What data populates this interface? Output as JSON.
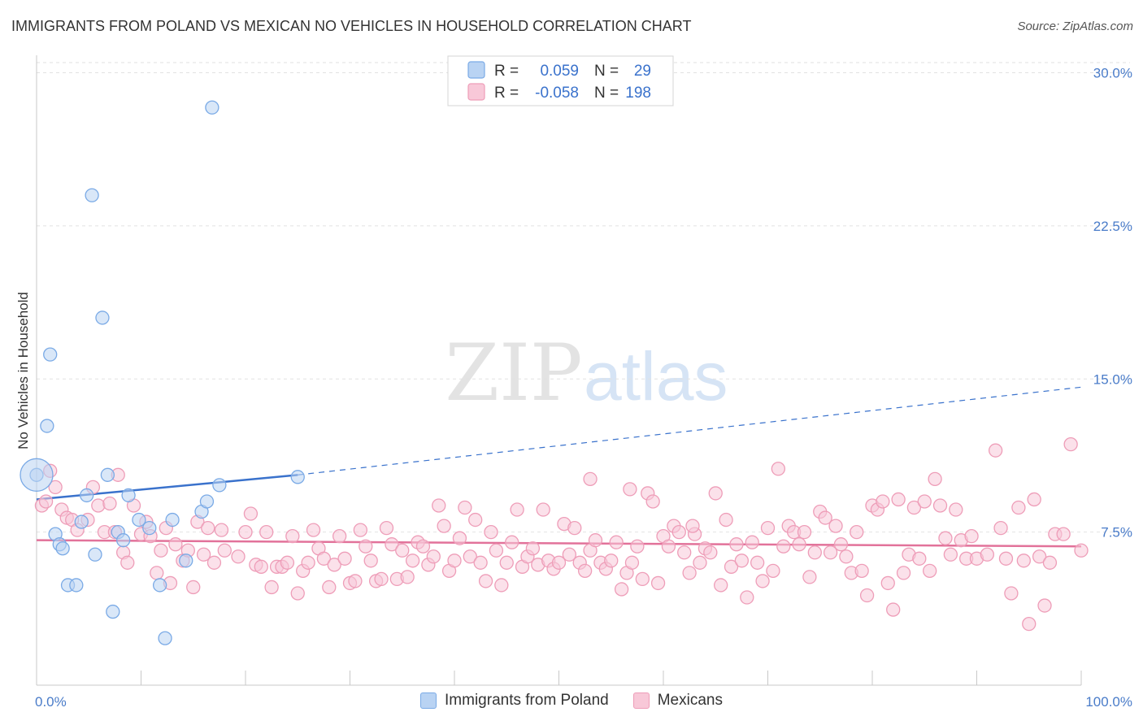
{
  "title": "IMMIGRANTS FROM POLAND VS MEXICAN NO VEHICLES IN HOUSEHOLD CORRELATION CHART",
  "source": "Source: ZipAtlas.com",
  "watermark": {
    "zip": "ZIP",
    "atlas": "atlas"
  },
  "chart_data": {
    "type": "scatter",
    "xlabel": "",
    "ylabel": "No Vehicles in Household",
    "xlim": [
      0,
      100
    ],
    "ylim": [
      0,
      30.5
    ],
    "x_tick_labels": [
      "0.0%",
      "100.0%"
    ],
    "y_ticks": [
      7.5,
      15.0,
      22.5,
      30.0
    ],
    "y_tick_labels": [
      "7.5%",
      "15.0%",
      "22.5%",
      "30.0%"
    ],
    "legend": {
      "rows": [
        {
          "r_label": "R =",
          "r_value": "0.059",
          "n_label": "N =",
          "n_value": "29"
        },
        {
          "r_label": "R =",
          "r_value": "-0.058",
          "n_label": "N =",
          "n_value": "198"
        }
      ]
    },
    "series": [
      {
        "name": "Immigrants from Poland",
        "color": "#7aaae6",
        "fill": "#b9d3f3",
        "trend": {
          "x0": 0,
          "y0": 9.1,
          "x1": 25,
          "y1": 10.3,
          "dash_to_x": 100,
          "dash_to_y": 14.6,
          "color": "#3a72cc"
        },
        "points": [
          [
            0,
            10.3
          ],
          [
            1,
            12.7
          ],
          [
            1.3,
            16.2
          ],
          [
            1.8,
            7.4
          ],
          [
            2.2,
            6.9
          ],
          [
            2.5,
            6.7
          ],
          [
            3,
            4.9
          ],
          [
            3.8,
            4.9
          ],
          [
            4.3,
            8.0
          ],
          [
            4.8,
            9.3
          ],
          [
            5.3,
            24.0
          ],
          [
            5.6,
            6.4
          ],
          [
            6.3,
            18.0
          ],
          [
            6.8,
            10.3
          ],
          [
            7.3,
            3.6
          ],
          [
            7.8,
            7.5
          ],
          [
            8.3,
            7.1
          ],
          [
            8.8,
            9.3
          ],
          [
            9.8,
            8.1
          ],
          [
            10.8,
            7.7
          ],
          [
            11.8,
            4.9
          ],
          [
            12.3,
            2.3
          ],
          [
            13.0,
            8.1
          ],
          [
            14.3,
            6.1
          ],
          [
            15.8,
            8.5
          ],
          [
            16.3,
            9.0
          ],
          [
            16.8,
            28.3
          ],
          [
            17.5,
            9.8
          ],
          [
            25,
            10.2
          ]
        ]
      },
      {
        "name": "Mexicans",
        "color": "#ee9db8",
        "fill": "#f8c8d8",
        "trend": {
          "x0": 0,
          "y0": 7.1,
          "x1": 100,
          "y1": 6.8,
          "color": "#e2729a"
        },
        "points": [
          [
            0.5,
            8.8
          ],
          [
            0.9,
            9.0
          ],
          [
            1.3,
            10.5
          ],
          [
            1.8,
            9.7
          ],
          [
            2.4,
            8.6
          ],
          [
            2.9,
            8.2
          ],
          [
            3.4,
            8.1
          ],
          [
            3.9,
            7.6
          ],
          [
            4.9,
            8.1
          ],
          [
            5.4,
            9.7
          ],
          [
            5.9,
            8.8
          ],
          [
            6.5,
            7.5
          ],
          [
            7.0,
            8.9
          ],
          [
            7.5,
            7.5
          ],
          [
            7.8,
            10.3
          ],
          [
            8.3,
            6.5
          ],
          [
            8.7,
            6.0
          ],
          [
            9.3,
            8.8
          ],
          [
            10.0,
            7.4
          ],
          [
            10.5,
            8.0
          ],
          [
            10.9,
            7.3
          ],
          [
            11.5,
            5.5
          ],
          [
            11.9,
            6.6
          ],
          [
            12.4,
            7.7
          ],
          [
            12.8,
            5.0
          ],
          [
            13.3,
            6.9
          ],
          [
            14.0,
            6.1
          ],
          [
            14.5,
            6.6
          ],
          [
            15.0,
            4.8
          ],
          [
            15.4,
            8.0
          ],
          [
            16.0,
            6.4
          ],
          [
            16.4,
            7.7
          ],
          [
            17.0,
            6.0
          ],
          [
            17.7,
            7.6
          ],
          [
            18.0,
            6.6
          ],
          [
            19.3,
            6.3
          ],
          [
            20.0,
            7.5
          ],
          [
            20.5,
            8.4
          ],
          [
            21.0,
            5.9
          ],
          [
            21.5,
            5.8
          ],
          [
            22.0,
            7.5
          ],
          [
            22.5,
            4.8
          ],
          [
            23.0,
            5.8
          ],
          [
            23.5,
            5.8
          ],
          [
            24.0,
            6.0
          ],
          [
            24.5,
            7.3
          ],
          [
            25.0,
            4.5
          ],
          [
            25.5,
            5.6
          ],
          [
            26.0,
            6.0
          ],
          [
            26.5,
            7.6
          ],
          [
            27.0,
            6.7
          ],
          [
            27.5,
            6.2
          ],
          [
            28.0,
            4.8
          ],
          [
            28.5,
            5.9
          ],
          [
            29.0,
            7.3
          ],
          [
            29.5,
            6.2
          ],
          [
            30.0,
            5.0
          ],
          [
            30.5,
            5.1
          ],
          [
            31.0,
            7.6
          ],
          [
            31.5,
            6.8
          ],
          [
            32.0,
            6.1
          ],
          [
            32.5,
            5.1
          ],
          [
            33.0,
            5.2
          ],
          [
            33.5,
            7.7
          ],
          [
            34.0,
            6.9
          ],
          [
            34.5,
            5.2
          ],
          [
            35.0,
            6.6
          ],
          [
            35.5,
            5.3
          ],
          [
            36.0,
            6.1
          ],
          [
            36.5,
            7.0
          ],
          [
            37.0,
            6.8
          ],
          [
            37.5,
            5.9
          ],
          [
            38.0,
            6.3
          ],
          [
            38.5,
            8.8
          ],
          [
            39.0,
            7.8
          ],
          [
            39.5,
            5.6
          ],
          [
            40.0,
            6.1
          ],
          [
            40.5,
            7.2
          ],
          [
            41.0,
            8.7
          ],
          [
            41.5,
            6.3
          ],
          [
            42.0,
            8.1
          ],
          [
            42.5,
            6.0
          ],
          [
            43.0,
            5.1
          ],
          [
            43.5,
            7.5
          ],
          [
            44.0,
            6.6
          ],
          [
            44.5,
            4.9
          ],
          [
            45.0,
            6.0
          ],
          [
            45.5,
            7.0
          ],
          [
            46.0,
            8.6
          ],
          [
            46.5,
            5.8
          ],
          [
            47.0,
            6.3
          ],
          [
            47.5,
            6.7
          ],
          [
            48.0,
            5.9
          ],
          [
            48.5,
            8.6
          ],
          [
            49.0,
            6.1
          ],
          [
            49.5,
            5.7
          ],
          [
            50.0,
            6.0
          ],
          [
            50.5,
            7.9
          ],
          [
            51.0,
            6.4
          ],
          [
            51.5,
            7.7
          ],
          [
            52.0,
            6.0
          ],
          [
            52.5,
            5.6
          ],
          [
            53.0,
            6.6
          ],
          [
            53.5,
            7.1
          ],
          [
            54.0,
            6.0
          ],
          [
            54.5,
            5.7
          ],
          [
            55.0,
            6.1
          ],
          [
            55.5,
            7.0
          ],
          [
            56.0,
            4.7
          ],
          [
            56.5,
            5.5
          ],
          [
            57.0,
            6.0
          ],
          [
            57.5,
            6.8
          ],
          [
            58.0,
            5.2
          ],
          [
            58.5,
            9.4
          ],
          [
            59.0,
            9.0
          ],
          [
            59.5,
            5.0
          ],
          [
            60.0,
            7.3
          ],
          [
            60.5,
            6.8
          ],
          [
            61.0,
            7.8
          ],
          [
            61.5,
            7.5
          ],
          [
            62.0,
            6.5
          ],
          [
            62.5,
            5.5
          ],
          [
            63.0,
            7.4
          ],
          [
            63.5,
            6.0
          ],
          [
            64.0,
            6.7
          ],
          [
            64.5,
            6.5
          ],
          [
            65.0,
            9.4
          ],
          [
            65.5,
            4.9
          ],
          [
            66.0,
            8.1
          ],
          [
            66.5,
            5.8
          ],
          [
            67.0,
            6.9
          ],
          [
            67.5,
            6.1
          ],
          [
            68.0,
            4.3
          ],
          [
            68.5,
            7.0
          ],
          [
            69.0,
            6.0
          ],
          [
            69.5,
            5.1
          ],
          [
            70.0,
            7.7
          ],
          [
            70.5,
            5.6
          ],
          [
            71.0,
            10.6
          ],
          [
            71.5,
            6.8
          ],
          [
            72.0,
            7.8
          ],
          [
            72.5,
            7.5
          ],
          [
            73.0,
            6.9
          ],
          [
            73.5,
            7.5
          ],
          [
            74.0,
            5.3
          ],
          [
            74.5,
            6.5
          ],
          [
            75.0,
            8.5
          ],
          [
            75.5,
            8.2
          ],
          [
            76.0,
            6.5
          ],
          [
            76.5,
            7.8
          ],
          [
            77.0,
            6.9
          ],
          [
            77.5,
            6.3
          ],
          [
            78.0,
            5.5
          ],
          [
            78.5,
            7.5
          ],
          [
            79.0,
            5.6
          ],
          [
            79.5,
            4.4
          ],
          [
            80.0,
            8.8
          ],
          [
            80.5,
            8.6
          ],
          [
            81.0,
            9.0
          ],
          [
            81.5,
            5.0
          ],
          [
            82.0,
            3.7
          ],
          [
            82.5,
            9.1
          ],
          [
            83.0,
            5.5
          ],
          [
            83.5,
            6.4
          ],
          [
            84.0,
            8.7
          ],
          [
            84.5,
            6.2
          ],
          [
            85.0,
            9.0
          ],
          [
            85.5,
            5.6
          ],
          [
            86.0,
            10.1
          ],
          [
            86.5,
            8.8
          ],
          [
            87.0,
            7.2
          ],
          [
            87.5,
            6.4
          ],
          [
            88.0,
            8.6
          ],
          [
            88.5,
            7.1
          ],
          [
            89.0,
            6.2
          ],
          [
            89.5,
            7.3
          ],
          [
            90.0,
            6.2
          ],
          [
            91.0,
            6.4
          ],
          [
            91.8,
            11.5
          ],
          [
            92.3,
            7.7
          ],
          [
            92.8,
            6.2
          ],
          [
            93.3,
            4.5
          ],
          [
            94.0,
            8.7
          ],
          [
            94.5,
            6.1
          ],
          [
            95.0,
            3.0
          ],
          [
            95.5,
            9.1
          ],
          [
            96.0,
            6.3
          ],
          [
            96.5,
            3.9
          ],
          [
            97.0,
            6.0
          ],
          [
            97.5,
            7.4
          ],
          [
            98.3,
            7.4
          ],
          [
            99.0,
            11.8
          ],
          [
            100.0,
            6.6
          ],
          [
            62.8,
            7.8
          ],
          [
            56.8,
            9.6
          ],
          [
            53.0,
            10.1
          ]
        ]
      }
    ]
  }
}
